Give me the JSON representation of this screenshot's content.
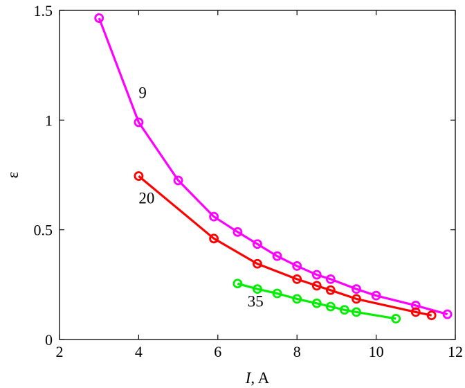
{
  "chart_data": {
    "type": "line",
    "xlabel_italic": "I",
    "xlabel_rest": ", A",
    "ylabel": "ε",
    "xlim": [
      2,
      12
    ],
    "ylim": [
      0,
      1.5
    ],
    "xticks": [
      2,
      4,
      6,
      8,
      10,
      12
    ],
    "yticks": [
      0,
      0.5,
      1,
      1.5
    ],
    "xtick_labels": [
      "2",
      "4",
      "6",
      "8",
      "10",
      "12"
    ],
    "ytick_labels": [
      "0",
      "0.5",
      "1",
      "1.5"
    ],
    "grid": false,
    "series": [
      {
        "label": "9",
        "label_at": [
          4.0,
          1.1
        ],
        "color": "#ff00ff",
        "x": [
          3.0,
          4.0,
          5.0,
          5.9,
          6.5,
          7.0,
          7.5,
          8.0,
          8.5,
          8.85,
          9.5,
          10.0,
          11.0,
          11.8
        ],
        "y": [
          1.465,
          0.99,
          0.725,
          0.56,
          0.49,
          0.435,
          0.38,
          0.335,
          0.295,
          0.275,
          0.23,
          0.2,
          0.155,
          0.115
        ]
      },
      {
        "label": "20",
        "label_at": [
          4.0,
          0.62
        ],
        "color": "#ff0000",
        "x": [
          4.0,
          5.9,
          7.0,
          8.0,
          8.5,
          8.85,
          9.5,
          11.0,
          11.4
        ],
        "y": [
          0.745,
          0.46,
          0.345,
          0.275,
          0.245,
          0.225,
          0.185,
          0.125,
          0.11
        ]
      },
      {
        "label": "35",
        "label_at": [
          6.75,
          0.15
        ],
        "color": "#00ee00",
        "x": [
          6.5,
          7.0,
          7.5,
          8.0,
          8.5,
          8.85,
          9.2,
          9.5,
          10.5
        ],
        "y": [
          0.255,
          0.23,
          0.21,
          0.185,
          0.165,
          0.15,
          0.135,
          0.125,
          0.095
        ]
      }
    ]
  }
}
